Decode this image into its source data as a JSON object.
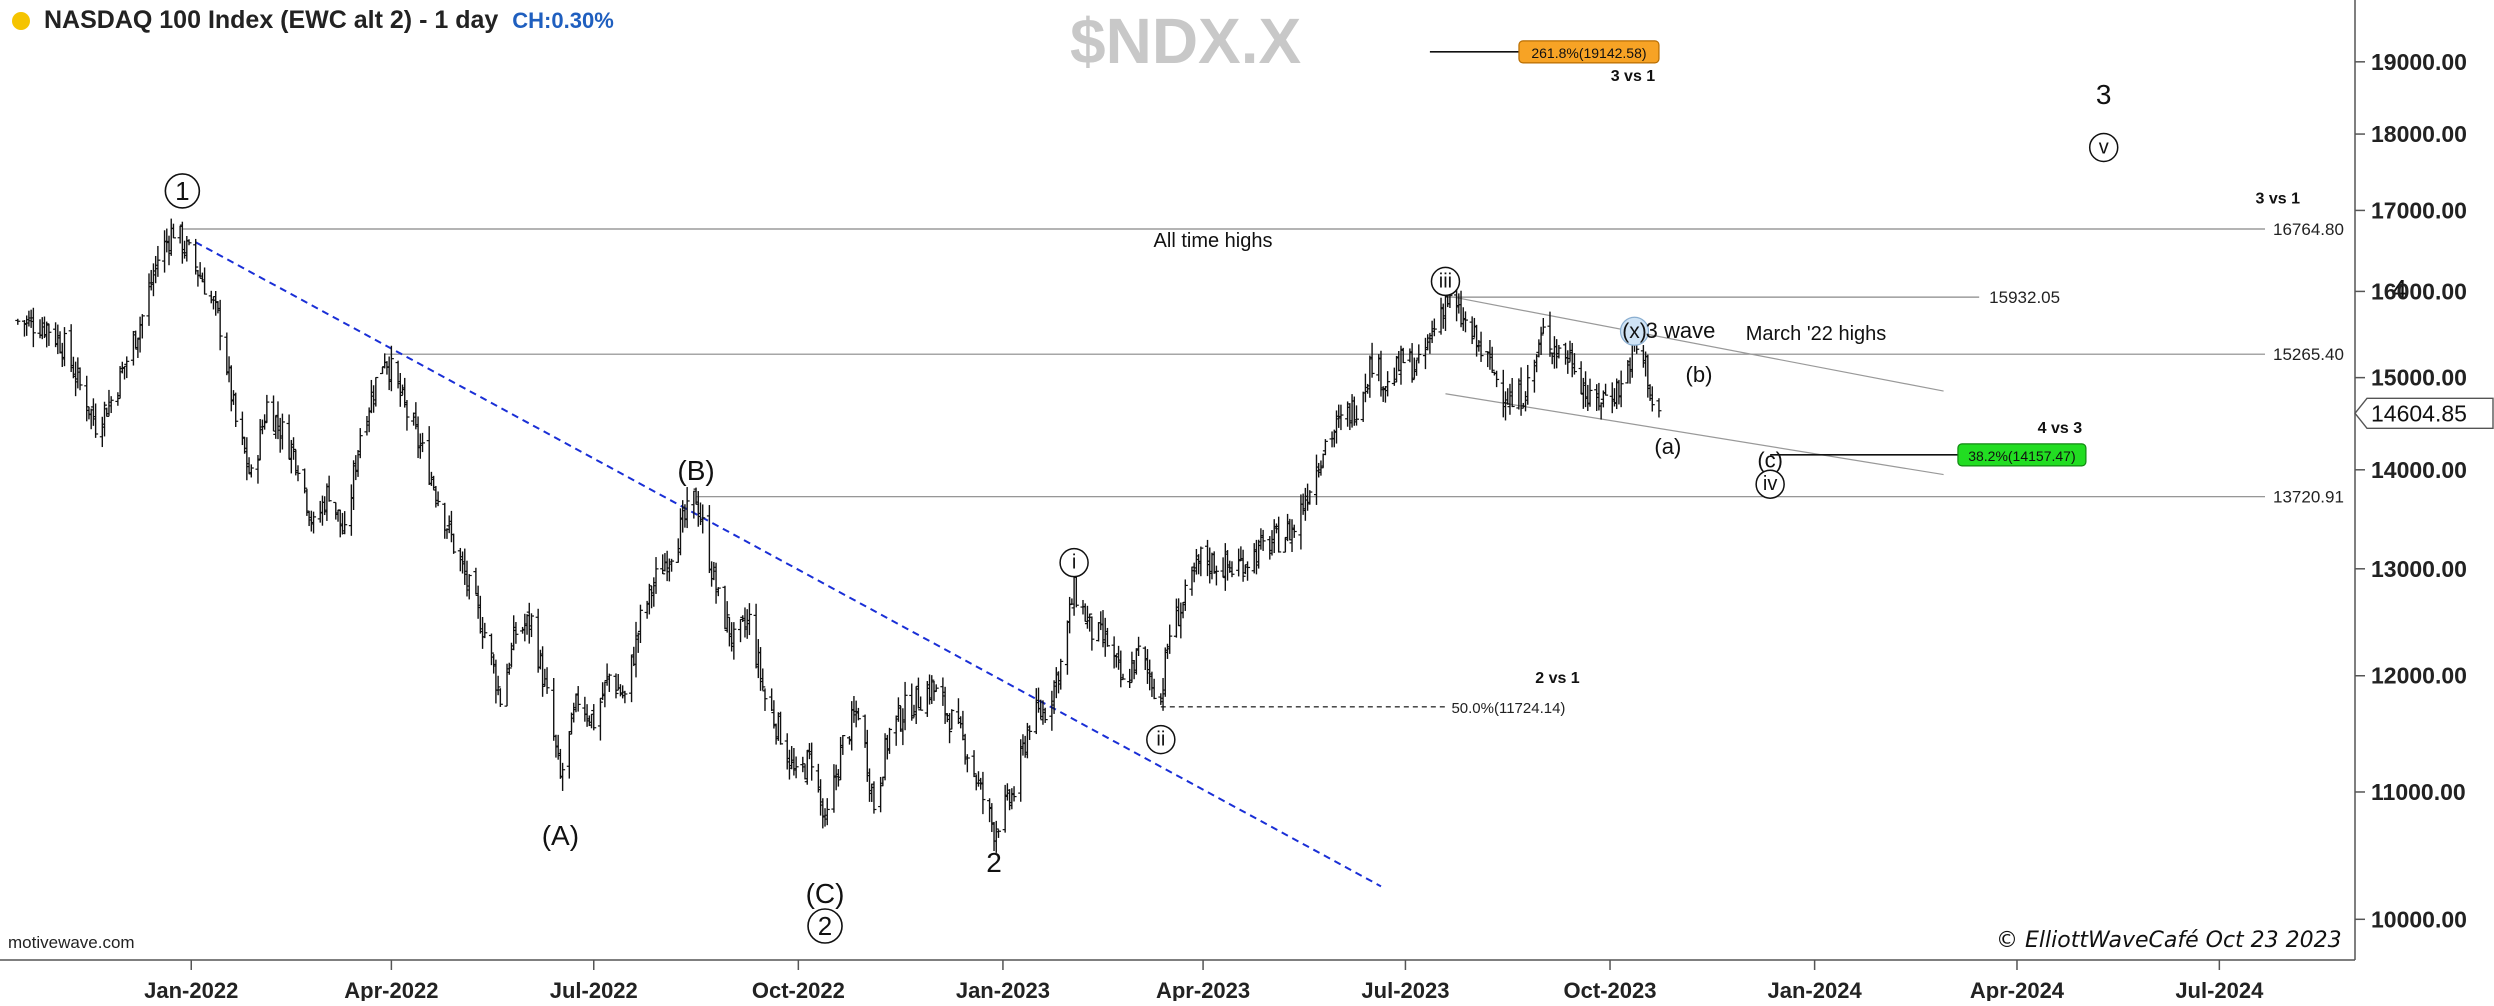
{
  "header": {
    "title": "NASDAQ 100 Index (EWC alt 2) - 1 day",
    "change": "CH:0.30%",
    "symbol": "$NDX.X"
  },
  "footer": {
    "source": "motivewave.com",
    "copyright": "© ElliottWaveCafé Oct 23 2023"
  },
  "chart_data": {
    "type": "ohlc",
    "price_scale": {
      "type": "log",
      "ylim": [
        9700,
        19900
      ]
    },
    "x_ticks": [
      "Jan-2022",
      "Apr-2022",
      "Jul-2022",
      "Oct-2022",
      "Jan-2023",
      "Apr-2023",
      "Jul-2023",
      "Oct-2023",
      "Jan-2024",
      "Apr-2024",
      "Jul-2024"
    ],
    "y_ticks": [
      19000,
      18000,
      17000,
      16000,
      15000,
      14000,
      13000,
      12000,
      11000,
      10000
    ],
    "y_tick_labels": [
      "19000.00",
      "18000.00",
      "17000.00",
      "16000.00",
      "15000.00",
      "14000.00",
      "13000.00",
      "12000.00",
      "11000.00",
      "10000.00"
    ],
    "last_price": {
      "value": 14604.85,
      "label": "14604.85"
    },
    "price_path": [
      {
        "date": "2021-10-15",
        "price": 15650
      },
      {
        "date": "2021-10-28",
        "price": 15600
      },
      {
        "date": "2021-11-05",
        "price": 15350
      },
      {
        "date": "2021-11-12",
        "price": 14900
      },
      {
        "date": "2021-11-19",
        "price": 14500
      },
      {
        "date": "2021-11-26",
        "price": 14750
      },
      {
        "date": "2021-12-03",
        "price": 15200
      },
      {
        "date": "2021-12-10",
        "price": 15700
      },
      {
        "date": "2021-12-17",
        "price": 16400
      },
      {
        "date": "2021-12-24",
        "price": 16765
      },
      {
        "date": "2021-12-31",
        "price": 16450
      },
      {
        "date": "2022-01-07",
        "price": 16100
      },
      {
        "date": "2022-01-14",
        "price": 15600
      },
      {
        "date": "2022-01-21",
        "price": 14500
      },
      {
        "date": "2022-01-28",
        "price": 13900
      },
      {
        "date": "2022-02-04",
        "price": 14700
      },
      {
        "date": "2022-02-11",
        "price": 14400
      },
      {
        "date": "2022-02-18",
        "price": 14100
      },
      {
        "date": "2022-02-25",
        "price": 13400
      },
      {
        "date": "2022-03-04",
        "price": 13800
      },
      {
        "date": "2022-03-11",
        "price": 13300
      },
      {
        "date": "2022-03-18",
        "price": 14400
      },
      {
        "date": "2022-03-29",
        "price": 15265
      },
      {
        "date": "2022-04-08",
        "price": 14600
      },
      {
        "date": "2022-04-18",
        "price": 14000
      },
      {
        "date": "2022-04-28",
        "price": 13300
      },
      {
        "date": "2022-05-06",
        "price": 12800
      },
      {
        "date": "2022-05-13",
        "price": 12400
      },
      {
        "date": "2022-05-20",
        "price": 11800
      },
      {
        "date": "2022-05-27",
        "price": 12400
      },
      {
        "date": "2022-06-03",
        "price": 12500
      },
      {
        "date": "2022-06-10",
        "price": 11800
      },
      {
        "date": "2022-06-16",
        "price": 11100
      },
      {
        "date": "2022-06-24",
        "price": 11800
      },
      {
        "date": "2022-07-01",
        "price": 11600
      },
      {
        "date": "2022-07-08",
        "price": 12000
      },
      {
        "date": "2022-07-15",
        "price": 11800
      },
      {
        "date": "2022-07-22",
        "price": 12500
      },
      {
        "date": "2022-07-29",
        "price": 12900
      },
      {
        "date": "2022-08-05",
        "price": 13200
      },
      {
        "date": "2022-08-16",
        "price": 13720
      },
      {
        "date": "2022-08-26",
        "price": 12700
      },
      {
        "date": "2022-09-02",
        "price": 12300
      },
      {
        "date": "2022-09-09",
        "price": 12500
      },
      {
        "date": "2022-09-16",
        "price": 11800
      },
      {
        "date": "2022-09-23",
        "price": 11500
      },
      {
        "date": "2022-09-30",
        "price": 11100
      },
      {
        "date": "2022-10-07",
        "price": 11300
      },
      {
        "date": "2022-10-13",
        "price": 10700
      },
      {
        "date": "2022-10-21",
        "price": 11400
      },
      {
        "date": "2022-10-28",
        "price": 11700
      },
      {
        "date": "2022-11-04",
        "price": 10900
      },
      {
        "date": "2022-11-11",
        "price": 11500
      },
      {
        "date": "2022-11-18",
        "price": 11700
      },
      {
        "date": "2022-11-30",
        "price": 11900
      },
      {
        "date": "2022-12-09",
        "price": 11600
      },
      {
        "date": "2022-12-15",
        "price": 11400
      },
      {
        "date": "2022-12-22",
        "price": 11000
      },
      {
        "date": "2022-12-28",
        "price": 10700
      },
      {
        "date": "2023-01-06",
        "price": 11000
      },
      {
        "date": "2023-01-13",
        "price": 11600
      },
      {
        "date": "2023-01-20",
        "price": 11700
      },
      {
        "date": "2023-01-27",
        "price": 12100
      },
      {
        "date": "2023-02-02",
        "price": 12800
      },
      {
        "date": "2023-02-10",
        "price": 12400
      },
      {
        "date": "2023-02-17",
        "price": 12300
      },
      {
        "date": "2023-02-24",
        "price": 11900
      },
      {
        "date": "2023-03-03",
        "price": 12200
      },
      {
        "date": "2023-03-13",
        "price": 11800
      },
      {
        "date": "2023-03-17",
        "price": 12400
      },
      {
        "date": "2023-03-24",
        "price": 12700
      },
      {
        "date": "2023-03-31",
        "price": 13100
      },
      {
        "date": "2023-04-14",
        "price": 13000
      },
      {
        "date": "2023-04-28",
        "price": 13200
      },
      {
        "date": "2023-05-12",
        "price": 13400
      },
      {
        "date": "2023-05-26",
        "price": 14300
      },
      {
        "date": "2023-06-09",
        "price": 14700
      },
      {
        "date": "2023-06-16",
        "price": 15200
      },
      {
        "date": "2023-06-23",
        "price": 14900
      },
      {
        "date": "2023-06-30",
        "price": 15200
      },
      {
        "date": "2023-07-07",
        "price": 15100
      },
      {
        "date": "2023-07-19",
        "price": 15930
      },
      {
        "date": "2023-07-28",
        "price": 15600
      },
      {
        "date": "2023-08-04",
        "price": 15300
      },
      {
        "date": "2023-08-11",
        "price": 15000
      },
      {
        "date": "2023-08-18",
        "price": 14700
      },
      {
        "date": "2023-08-25",
        "price": 14900
      },
      {
        "date": "2023-09-01",
        "price": 15500
      },
      {
        "date": "2023-09-08",
        "price": 15300
      },
      {
        "date": "2023-09-15",
        "price": 15200
      },
      {
        "date": "2023-09-22",
        "price": 14700
      },
      {
        "date": "2023-09-29",
        "price": 14800
      },
      {
        "date": "2023-10-06",
        "price": 14900
      },
      {
        "date": "2023-10-12",
        "price": 15350
      },
      {
        "date": "2023-10-17",
        "price": 15150
      },
      {
        "date": "2023-10-20",
        "price": 14700
      },
      {
        "date": "2023-10-23",
        "price": 14605
      }
    ],
    "horizontal_levels": [
      {
        "price": 16764.8,
        "label": "16764.80",
        "note": "All time highs",
        "from": "2021-12-28"
      },
      {
        "price": 15932.05,
        "label": "15932.05",
        "from": "2023-07-19",
        "to": "2024-03-15"
      },
      {
        "price": 15265.4,
        "label": "15265.40",
        "note": "March '22 highs",
        "from": "2022-03-29"
      },
      {
        "price": 13720.91,
        "label": "13720.91",
        "from": "2022-08-16"
      }
    ],
    "trendline": {
      "start": {
        "date": "2022-01-03",
        "price": 16600
      },
      "end": {
        "date": "2023-06-20",
        "price": 10250
      }
    },
    "channel": [
      {
        "start": {
          "date": "2023-07-19",
          "price": 15950
        },
        "end": {
          "date": "2024-02-28",
          "price": 14850
        }
      },
      {
        "start": {
          "date": "2023-07-19",
          "price": 14820
        },
        "end": {
          "date": "2024-02-28",
          "price": 13950
        }
      }
    ],
    "fib_levels": [
      {
        "label": "261.8%(19142.58)",
        "price": 19142.58,
        "from": "2023-07-12",
        "to": "2023-10-23",
        "style": "orange",
        "heading": "3 vs 1"
      },
      {
        "label": "38.2%(14157.47)",
        "price": 14157.47,
        "from": "2023-12-12",
        "to": "2024-05-02",
        "style": "green",
        "heading": "4 vs 3"
      },
      {
        "label": "50.0%(11724.14)",
        "price": 11724.14,
        "from": "2023-03-13",
        "to": "2023-07-19",
        "style": "dashed",
        "heading": "2 vs 1"
      }
    ],
    "wave_labels": [
      {
        "text": "1",
        "date": "2021-12-28",
        "price": 17250,
        "style": "circle"
      },
      {
        "text": "(A)",
        "date": "2022-06-16",
        "price": 10650,
        "style": "plain"
      },
      {
        "text": "(B)",
        "date": "2022-08-16",
        "price": 14000,
        "style": "plain"
      },
      {
        "text": "(C)",
        "date": "2022-10-13",
        "price": 10200,
        "style": "plain"
      },
      {
        "text": "2",
        "date": "2022-10-13",
        "price": 9950,
        "style": "circle"
      },
      {
        "text": "2",
        "date": "2022-12-28",
        "price": 10440,
        "style": "plain"
      },
      {
        "text": "i",
        "date": "2023-02-02",
        "price": 13060,
        "style": "circle-small"
      },
      {
        "text": "ii",
        "date": "2023-03-13",
        "price": 11440,
        "style": "circle-small"
      },
      {
        "text": "iii",
        "date": "2023-07-19",
        "price": 16120,
        "style": "circle-small"
      },
      {
        "text": "(x)",
        "date": "2023-10-12",
        "price": 15530,
        "style": "circle-blue"
      },
      {
        "text": "3 wave",
        "date": "2023-10-17",
        "price": 15530,
        "style": "note"
      },
      {
        "text": "(b)",
        "date": "2023-11-10",
        "price": 15030,
        "style": "serif"
      },
      {
        "text": "(a)",
        "date": "2023-10-27",
        "price": 14240,
        "style": "serif"
      },
      {
        "text": "(c)",
        "date": "2023-12-12",
        "price": 14100,
        "style": "serif"
      },
      {
        "text": "iv",
        "date": "2023-12-12",
        "price": 13850,
        "style": "circle-small"
      },
      {
        "text": "3",
        "date": "2024-05-10",
        "price": 18550,
        "style": "plain"
      },
      {
        "text": "v",
        "date": "2024-05-10",
        "price": 17820,
        "style": "circle-small"
      },
      {
        "text": "4",
        "date": "2024-09-20",
        "price": 16030,
        "style": "plain"
      }
    ],
    "level_notes": [
      {
        "text": "3 vs 1",
        "price": 17090
      }
    ]
  }
}
